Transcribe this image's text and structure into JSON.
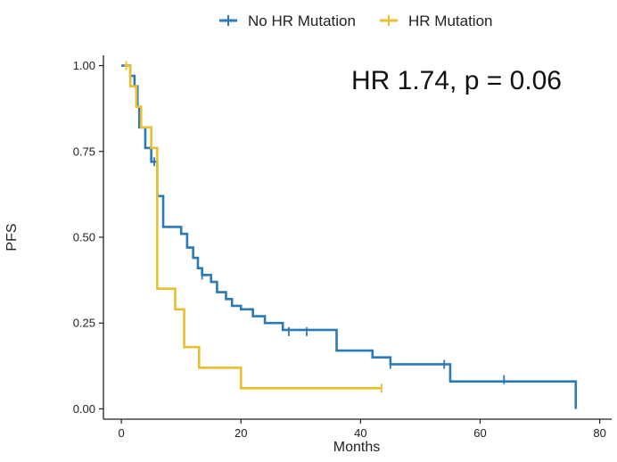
{
  "chart_data": {
    "type": "line",
    "title": "",
    "xlabel": "Months",
    "ylabel": "PFS",
    "xlim": [
      -3,
      82
    ],
    "ylim": [
      -0.03,
      1.03
    ],
    "xticks": [
      0,
      20,
      40,
      60,
      80
    ],
    "yticks": [
      0.0,
      0.25,
      0.5,
      0.75,
      1.0
    ],
    "xtick_labels": [
      "0",
      "20",
      "40",
      "60",
      "80"
    ],
    "ytick_labels": [
      "0.00",
      "0.25",
      "0.50",
      "0.75",
      "1.00"
    ],
    "grid": false,
    "legend_position": "top",
    "annotation": "HR 1.74, p = 0.06",
    "series": [
      {
        "name": "No HR Mutation",
        "color": "#2a7ab8",
        "steps": [
          [
            0,
            1.0
          ],
          [
            1.5,
            0.97
          ],
          [
            2.2,
            0.94
          ],
          [
            2.7,
            0.88
          ],
          [
            3.0,
            0.82
          ],
          [
            4.0,
            0.76
          ],
          [
            5.0,
            0.72
          ],
          [
            6.0,
            0.62
          ],
          [
            7.0,
            0.53
          ],
          [
            10.0,
            0.51
          ],
          [
            11.0,
            0.47
          ],
          [
            12.0,
            0.44
          ],
          [
            12.8,
            0.41
          ],
          [
            13.5,
            0.39
          ],
          [
            15.0,
            0.37
          ],
          [
            16.0,
            0.34
          ],
          [
            17.5,
            0.32
          ],
          [
            18.5,
            0.3
          ],
          [
            20.0,
            0.29
          ],
          [
            22.0,
            0.27
          ],
          [
            24.0,
            0.25
          ],
          [
            27.0,
            0.23
          ],
          [
            36.0,
            0.21
          ],
          [
            36.0,
            0.17
          ],
          [
            42.0,
            0.15
          ],
          [
            45.0,
            0.13
          ],
          [
            55.0,
            0.08
          ]
        ],
        "end_x": 76,
        "end_drop_to": 0.0,
        "censored": [
          [
            5.5,
            0.72
          ],
          [
            13.5,
            0.39
          ],
          [
            28.0,
            0.225
          ],
          [
            31.0,
            0.225
          ],
          [
            45.0,
            0.13
          ],
          [
            54.0,
            0.13
          ],
          [
            64.0,
            0.085
          ]
        ]
      },
      {
        "name": "HR Mutation",
        "color": "#e8c02f",
        "steps": [
          [
            0.5,
            1.0
          ],
          [
            1.5,
            0.94
          ],
          [
            2.5,
            0.88
          ],
          [
            3.3,
            0.82
          ],
          [
            5.0,
            0.76
          ],
          [
            6.0,
            0.35
          ],
          [
            9.0,
            0.29
          ],
          [
            10.5,
            0.18
          ],
          [
            11.5,
            0.18
          ],
          [
            13.0,
            0.12
          ],
          [
            20.0,
            0.06
          ]
        ],
        "end_x": 43.5,
        "end_drop_to": null,
        "censored": [
          [
            0.8,
            1.0
          ],
          [
            43.5,
            0.06
          ]
        ]
      }
    ]
  }
}
